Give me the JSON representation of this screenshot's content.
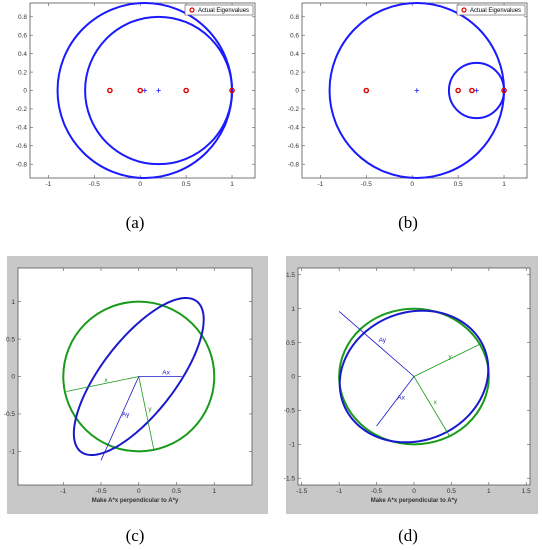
{
  "captions": [
    "(a)",
    "(b)",
    "(c)",
    "(d)"
  ],
  "chart_data": [
    {
      "type": "scatter",
      "panel": "a",
      "legend": "Actual Eigenvalues",
      "xlim": [
        -1.2,
        1.25
      ],
      "ylim": [
        -0.95,
        0.95
      ],
      "x_ticks": [
        "-1",
        "-0.5",
        "0",
        "0.5",
        "1"
      ],
      "x_tick_values": [
        -1,
        -0.5,
        0,
        0.5,
        1
      ],
      "y_ticks": [
        "0.8",
        "0.6",
        "0.4",
        "0.2",
        "0",
        "-0.2",
        "-0.4",
        "-0.6",
        "-0.8"
      ],
      "y_tick_values": [
        0.8,
        0.6,
        0.4,
        0.2,
        0,
        -0.2,
        -0.4,
        -0.6,
        -0.8
      ],
      "circles": [
        {
          "cx": 0.05,
          "cy": 0,
          "r": 0.95
        },
        {
          "cx": 0.2,
          "cy": 0,
          "r": 0.8
        }
      ],
      "eigenvalues": [
        {
          "x": -0.33,
          "y": 0
        },
        {
          "x": 0,
          "y": 0
        },
        {
          "x": 0.5,
          "y": 0
        },
        {
          "x": 1,
          "y": 0
        }
      ],
      "centers": [
        {
          "x": 0.05,
          "y": 0
        },
        {
          "x": 0.2,
          "y": 0
        }
      ],
      "colors": {
        "circle": "#1a1aff",
        "eigen": "#dd0000"
      }
    },
    {
      "type": "scatter",
      "panel": "b",
      "legend": "Actual Eigenvalues",
      "xlim": [
        -1.2,
        1.25
      ],
      "ylim": [
        -0.95,
        0.95
      ],
      "x_ticks": [
        "-1",
        "-0.5",
        "0",
        "0.5",
        "1"
      ],
      "x_tick_values": [
        -1,
        -0.5,
        0,
        0.5,
        1
      ],
      "y_ticks": [
        "0.8",
        "0.6",
        "0.4",
        "0.2",
        "0",
        "-0.2",
        "-0.4",
        "-0.6",
        "-0.8"
      ],
      "y_tick_values": [
        0.8,
        0.6,
        0.4,
        0.2,
        0,
        -0.2,
        -0.4,
        -0.6,
        -0.8
      ],
      "circles": [
        {
          "cx": 0.05,
          "cy": 0,
          "r": 0.95
        },
        {
          "cx": 0.7,
          "cy": 0,
          "r": 0.3
        }
      ],
      "eigenvalues": [
        {
          "x": -0.5,
          "y": 0
        },
        {
          "x": 0.5,
          "y": 0
        },
        {
          "x": 0.65,
          "y": 0
        },
        {
          "x": 1,
          "y": 0
        }
      ],
      "centers": [
        {
          "x": 0.05,
          "y": 0
        },
        {
          "x": 0.7,
          "y": 0
        }
      ],
      "colors": {
        "circle": "#1a1aff",
        "eigen": "#dd0000"
      }
    },
    {
      "type": "line",
      "panel": "c",
      "xlabel": "Make A*x perpendicular to A*y",
      "xlim": [
        -1.6,
        1.5
      ],
      "ylim": [
        -1.45,
        1.45
      ],
      "x_ticks": [
        "-1",
        "-0.5",
        "0",
        "0.5",
        "1"
      ],
      "x_tick_values": [
        -1,
        -0.5,
        0,
        0.5,
        1
      ],
      "y_ticks": [
        "1",
        "0.5",
        "0",
        "-0.5",
        "-1"
      ],
      "y_tick_values": [
        1,
        0.5,
        0,
        -0.5,
        -1
      ],
      "unit_circle": {
        "r": 1
      },
      "ellipse": {
        "matrix": [
          [
            0.7,
            0.5
          ],
          [
            0.2,
            1.03
          ]
        ]
      },
      "vectors": [
        {
          "label": "x",
          "color": "green",
          "dx": -0.96,
          "dy": -0.2
        },
        {
          "label": "y",
          "color": "green",
          "dx": 0.2,
          "dy": -0.98
        },
        {
          "label": "Ax",
          "color": "blue",
          "dx": 0.57,
          "dy": 0
        },
        {
          "label": "Ay",
          "color": "blue",
          "dx": -0.5,
          "dy": -1.12
        }
      ],
      "colors": {
        "circle": "#1a9a1a",
        "ellipse": "#1a1acc",
        "frame": "#c8c8c8"
      }
    },
    {
      "type": "line",
      "panel": "d",
      "xlabel": "Make A*x perpendicular to A*y",
      "xlim": [
        -1.55,
        1.55
      ],
      "ylim": [
        -1.6,
        1.6
      ],
      "x_ticks": [
        "-1.5",
        "-1",
        "-0.5",
        "0",
        "0.5",
        "1",
        "1.5"
      ],
      "x_tick_values": [
        -1.5,
        -1,
        -0.5,
        0,
        0.5,
        1,
        1.5
      ],
      "y_ticks": [
        "1.5",
        "1",
        "0.5",
        "0",
        "-0.5",
        "-1",
        "-1.5"
      ],
      "y_tick_values": [
        1.5,
        1,
        0.5,
        0,
        -0.5,
        -1,
        -1.5
      ],
      "unit_circle": {
        "r": 1
      },
      "ellipse": {
        "matrix": [
          [
            0.65,
            0.75
          ],
          [
            0.8,
            -0.55
          ]
        ]
      },
      "vectors": [
        {
          "label": "y",
          "color": "green",
          "dx": 0.87,
          "dy": 0.47
        },
        {
          "label": "x",
          "color": "green",
          "dx": 0.47,
          "dy": -0.87
        },
        {
          "label": "Ax",
          "color": "blue",
          "dx": -0.5,
          "dy": -0.73
        },
        {
          "label": "Ay",
          "color": "blue",
          "dx": -1.0,
          "dy": 0.96
        }
      ],
      "colors": {
        "circle": "#1a9a1a",
        "ellipse": "#1a1acc",
        "frame": "#c8c8c8"
      }
    }
  ]
}
